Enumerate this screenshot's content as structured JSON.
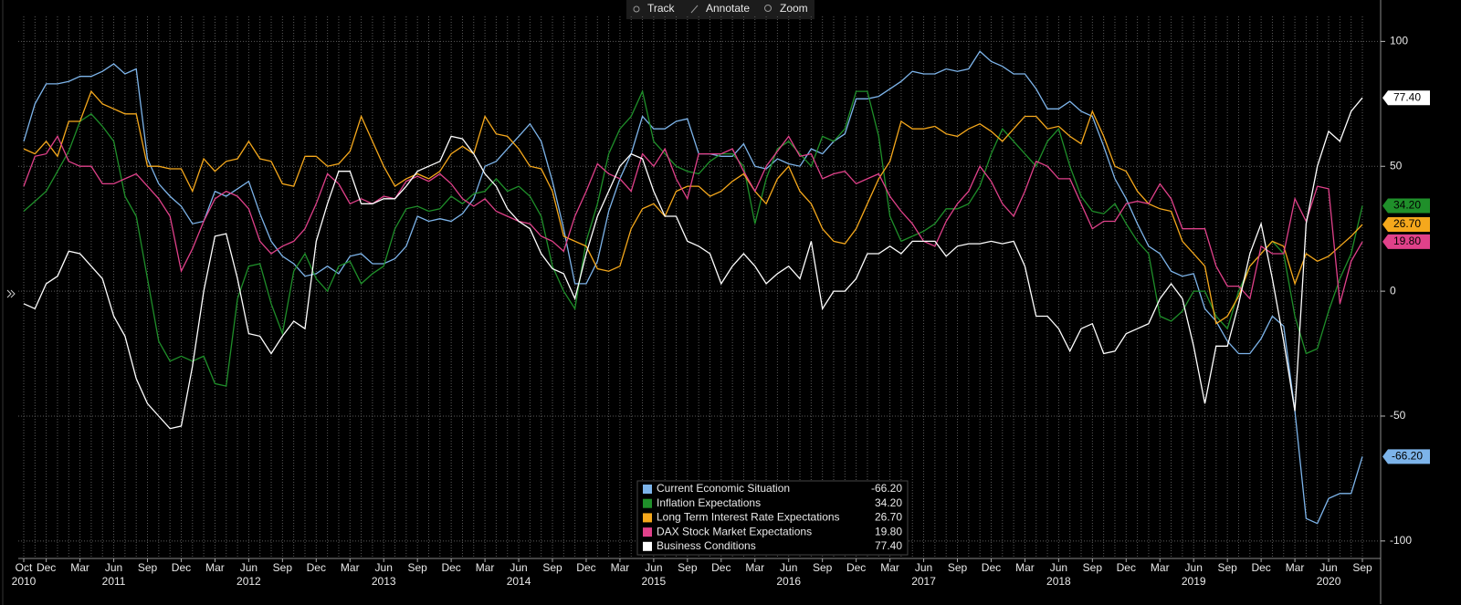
{
  "toolbar": [
    "Track",
    "Annotate",
    "Zoom"
  ],
  "chart_data": {
    "type": "line",
    "categories": [
      "Oct",
      null,
      "Dec",
      null,
      null,
      "Mar",
      null,
      null,
      "Jun",
      null,
      null,
      "Sep",
      null,
      null,
      "Dec",
      null,
      null,
      "Mar",
      null,
      null,
      "Jun",
      null,
      null,
      "Sep",
      null,
      null,
      "Dec",
      null,
      null,
      "Mar",
      null,
      null,
      "Jun",
      null,
      null,
      "Sep",
      null,
      null,
      "Dec",
      null,
      null,
      "Mar",
      null,
      null,
      "Jun",
      null,
      null,
      "Sep",
      null,
      null,
      "Dec",
      null,
      null,
      "Mar",
      null,
      null,
      "Jun",
      null,
      null,
      "Sep",
      null,
      null,
      "Dec",
      null,
      null,
      "Mar",
      null,
      null,
      "Jun",
      null,
      null,
      "Sep",
      null,
      null,
      "Dec",
      null,
      null,
      "Mar",
      null,
      null,
      "Jun",
      null,
      null,
      "Sep",
      null,
      null,
      "Dec",
      null,
      null,
      "Mar",
      null,
      null,
      "Jun",
      null,
      null,
      "Sep",
      null,
      null,
      "Dec",
      null,
      null,
      "Mar",
      null,
      null,
      "Jun",
      null,
      null,
      "Sep",
      null,
      null,
      "Dec",
      null,
      null,
      "Mar",
      null,
      null,
      "Jun",
      null,
      null,
      "Sep"
    ],
    "years": [
      "2010",
      null,
      null,
      null,
      null,
      null,
      null,
      null,
      "2011",
      null,
      null,
      null,
      null,
      null,
      null,
      null,
      null,
      null,
      null,
      null,
      "2012",
      null,
      null,
      null,
      null,
      null,
      null,
      null,
      null,
      null,
      null,
      null,
      "2013",
      null,
      null,
      null,
      null,
      null,
      null,
      null,
      null,
      null,
      null,
      null,
      "2014",
      null,
      null,
      null,
      null,
      null,
      null,
      null,
      null,
      null,
      null,
      null,
      "2015",
      null,
      null,
      null,
      null,
      null,
      null,
      null,
      null,
      null,
      null,
      null,
      "2016",
      null,
      null,
      null,
      null,
      null,
      null,
      null,
      null,
      null,
      null,
      null,
      "2017",
      null,
      null,
      null,
      null,
      null,
      null,
      null,
      null,
      null,
      null,
      null,
      "2018",
      null,
      null,
      null,
      null,
      null,
      null,
      null,
      null,
      null,
      null,
      null,
      "2019",
      null,
      null,
      null,
      null,
      null,
      null,
      null,
      null,
      null,
      null,
      null,
      "2020",
      null,
      null,
      null
    ],
    "ylim": [
      -107,
      110
    ],
    "yticks": [
      100,
      50,
      0,
      -50,
      -100
    ],
    "grid": true,
    "series": [
      {
        "name": "Current Economic Situation",
        "color": "#7db4ea",
        "value_label": "-66.20",
        "values": [
          60,
          75,
          83,
          83,
          84,
          86,
          86,
          88,
          91,
          87,
          89,
          53,
          43,
          38,
          34,
          27,
          28,
          40,
          38,
          41,
          44,
          31,
          20,
          14,
          11,
          6,
          7,
          10,
          7,
          14,
          15,
          11,
          11,
          13,
          18,
          30,
          28,
          29,
          28,
          31,
          37,
          50,
          52,
          57,
          62,
          67,
          60,
          44,
          25,
          3,
          3,
          12,
          32,
          45,
          55,
          70,
          65,
          65,
          68,
          69,
          55,
          55,
          54,
          54,
          59,
          50,
          49,
          53,
          51,
          50,
          57,
          55,
          60,
          63,
          77,
          77,
          78,
          81,
          84,
          88,
          87,
          87,
          89,
          88,
          89,
          96,
          92,
          90,
          87,
          87,
          81,
          73,
          73,
          76,
          72,
          70,
          58,
          45,
          37,
          27,
          18,
          15,
          8,
          6,
          7,
          -7,
          -12,
          -20,
          -25,
          -25,
          -19,
          -10,
          -14,
          -48,
          -91,
          -93,
          -83,
          -81,
          -81,
          -66.2
        ]
      },
      {
        "name": "Inflation Expectations",
        "color": "#1f8f2a",
        "value_label": "34.20",
        "values": [
          32,
          36,
          40,
          48,
          56,
          68,
          71,
          66,
          60,
          38,
          30,
          5,
          -20,
          -28,
          -26,
          -28,
          -26,
          -37,
          -38,
          -3,
          10,
          11,
          -5,
          -17,
          8,
          15,
          5,
          0,
          10,
          12,
          3,
          7,
          10,
          25,
          33,
          34,
          32,
          33,
          38,
          35,
          39,
          40,
          45,
          40,
          42,
          38,
          30,
          10,
          0,
          -7,
          20,
          35,
          55,
          65,
          70,
          80,
          60,
          55,
          50,
          48,
          47,
          52,
          55,
          55,
          50,
          27,
          45,
          57,
          60,
          55,
          50,
          62,
          60,
          65,
          80,
          80,
          62,
          30,
          20,
          22,
          24,
          27,
          33,
          33,
          35,
          42,
          55,
          65,
          60,
          55,
          50,
          60,
          65,
          50,
          38,
          32,
          31,
          35,
          27,
          20,
          15,
          -10,
          -12,
          -8,
          0,
          0,
          -10,
          -15,
          0,
          10,
          15,
          20,
          15,
          -10,
          -25,
          -23,
          -8,
          5,
          15,
          34.2
        ]
      },
      {
        "name": "Long Term Interest Rate Expectations",
        "color": "#f5a81c",
        "value_label": "26.70",
        "values": [
          57,
          55,
          60,
          54,
          68,
          68,
          80,
          75,
          73,
          71,
          71,
          50,
          50,
          49,
          49,
          40,
          53,
          48,
          52,
          53,
          60,
          53,
          52,
          43,
          42,
          54,
          54,
          50,
          51,
          56,
          70,
          60,
          50,
          42,
          45,
          47,
          45,
          48,
          55,
          58,
          55,
          70,
          63,
          62,
          57,
          50,
          49,
          40,
          22,
          20,
          18,
          9,
          8,
          10,
          25,
          33,
          35,
          30,
          40,
          42,
          42,
          38,
          40,
          44,
          47,
          40,
          35,
          45,
          50,
          40,
          35,
          25,
          20,
          19,
          25,
          35,
          45,
          52,
          68,
          65,
          65,
          66,
          63,
          62,
          65,
          67,
          64,
          60,
          65,
          70,
          70,
          65,
          66,
          62,
          59,
          72,
          62,
          50,
          48,
          40,
          35,
          33,
          32,
          20,
          15,
          10,
          -13,
          -10,
          -2,
          10,
          15,
          20,
          18,
          3,
          15,
          12,
          14,
          18,
          22,
          26.7
        ]
      },
      {
        "name": "DAX Stock Market Expectations",
        "color": "#e0418a",
        "value_label": "19.80",
        "values": [
          42,
          54,
          55,
          62,
          52,
          50,
          50,
          43,
          43,
          45,
          47,
          42,
          37,
          30,
          8,
          17,
          28,
          37,
          40,
          38,
          33,
          20,
          15,
          18,
          20,
          25,
          35,
          47,
          43,
          35,
          37,
          35,
          38,
          37,
          44,
          46,
          44,
          47,
          43,
          37,
          34,
          37,
          32,
          30,
          28,
          27,
          22,
          20,
          16,
          30,
          40,
          51,
          47,
          45,
          40,
          55,
          50,
          57,
          45,
          37,
          55,
          55,
          55,
          57,
          48,
          40,
          50,
          56,
          62,
          54,
          55,
          45,
          47,
          48,
          43,
          45,
          47,
          38,
          32,
          27,
          20,
          18,
          28,
          35,
          40,
          50,
          44,
          35,
          30,
          40,
          52,
          50,
          45,
          45,
          35,
          25,
          28,
          28,
          35,
          36,
          35,
          43,
          37,
          25,
          25,
          25,
          10,
          2,
          2,
          -3,
          18,
          15,
          15,
          37,
          28,
          42,
          41,
          -5,
          12,
          19.8
        ]
      },
      {
        "name": "Business Conditions",
        "color": "#ffffff",
        "value_label": "77.40",
        "values": [
          -5,
          -7,
          3,
          6,
          16,
          15,
          10,
          5,
          -10,
          -18,
          -35,
          -45,
          -50,
          -55,
          -54,
          -30,
          0,
          22,
          23,
          5,
          -17,
          -18,
          -25,
          -18,
          -12,
          -15,
          20,
          35,
          48,
          48,
          35,
          35,
          37,
          37,
          42,
          48,
          50,
          52,
          62,
          61,
          55,
          47,
          42,
          33,
          28,
          25,
          15,
          9,
          7,
          -3,
          15,
          30,
          40,
          50,
          55,
          53,
          40,
          30,
          30,
          20,
          18,
          15,
          3,
          10,
          15,
          10,
          3,
          7,
          10,
          5,
          20,
          -7,
          0,
          0,
          5,
          15,
          15,
          18,
          15,
          20,
          20,
          20,
          14,
          18,
          19,
          19,
          20,
          19,
          20,
          10,
          -10,
          -10,
          -15,
          -24,
          -15,
          -13,
          -25,
          -24,
          -17,
          -15,
          -13,
          -3,
          3,
          -3,
          -22,
          -45,
          -22,
          -22,
          -5,
          15,
          27,
          5,
          -20,
          -48,
          27,
          50,
          64,
          60,
          72,
          77.4
        ]
      }
    ]
  }
}
